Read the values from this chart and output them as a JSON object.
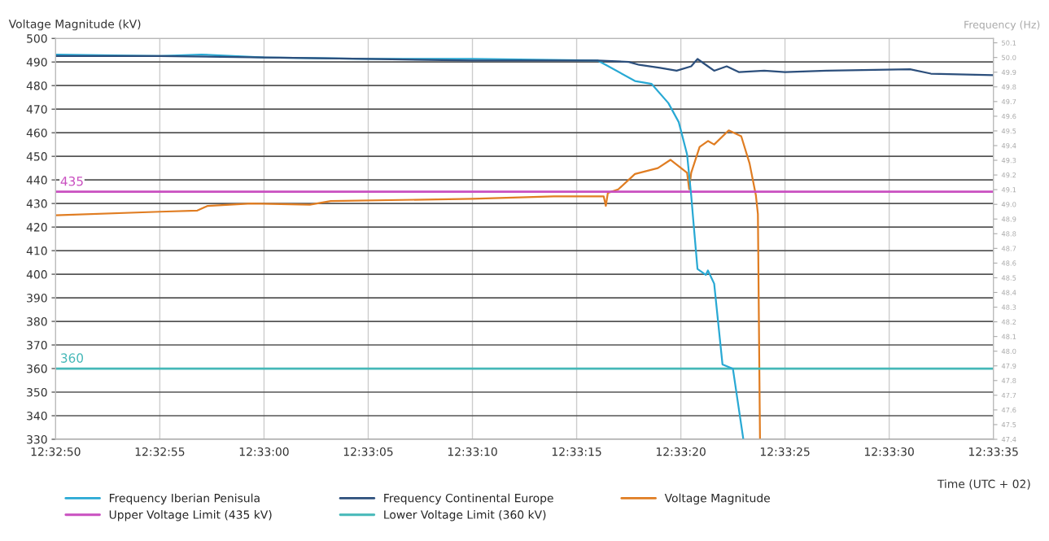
{
  "chart_data": {
    "type": "line",
    "ylabel": "Voltage Magnitude (kV)",
    "y2label": "Frequency (Hz)",
    "xlabel": "Time (UTC + 02)",
    "xlim": [
      12.547222,
      12.559722
    ],
    "xticks": [
      {
        "value": 12.547222,
        "label": "12:32:50"
      },
      {
        "value": 12.548611,
        "label": "12:32:55"
      },
      {
        "value": 12.55,
        "label": "12:33:00"
      },
      {
        "value": 12.551389,
        "label": "12:33:05"
      },
      {
        "value": 12.552778,
        "label": "12:33:10"
      },
      {
        "value": 12.554167,
        "label": "12:33:15"
      },
      {
        "value": 12.555556,
        "label": "12:33:20"
      },
      {
        "value": 12.556944,
        "label": "12:33:25"
      },
      {
        "value": 12.558333,
        "label": "12:33:30"
      },
      {
        "value": 12.559722,
        "label": "12:33:35"
      }
    ],
    "ylim": [
      330,
      500
    ],
    "yticks": [
      330,
      340,
      350,
      360,
      370,
      380,
      390,
      400,
      410,
      420,
      430,
      440,
      450,
      460,
      470,
      480,
      490,
      500
    ],
    "y2lim": [
      47.4,
      50.13
    ],
    "y2ticks": [
      47.4,
      47.5,
      47.6,
      47.7,
      47.8,
      47.9,
      {
        "value": 48,
        "label": "48.0"
      },
      48.1,
      48.2,
      48.3,
      48.4,
      48.5,
      48.6,
      48.7,
      48.8,
      48.9,
      {
        "value": 49,
        "label": "49.0"
      },
      49.1,
      49.2,
      49.3,
      49.4,
      49.5,
      49.6,
      49.7,
      49.8,
      49.9,
      {
        "value": 50,
        "label": "50.0"
      },
      50.1
    ],
    "grid": true,
    "legend": "bottom",
    "series": [
      {
        "name": "Frequency Iberian Penisula",
        "color": "#29a9d4",
        "axis": "y2",
        "x": [
          12.547222,
          12.548611,
          12.549167,
          12.55,
          12.551389,
          12.552778,
          12.554444,
          12.554556,
          12.554944,
          12.555167,
          12.555389,
          12.555528,
          12.555639,
          12.555694,
          12.555722,
          12.555778,
          12.555889,
          12.555917,
          12.556,
          12.556111,
          12.55625,
          12.556389
        ],
        "values": [
          50.02,
          50.01,
          50.02,
          50.0,
          49.99,
          49.99,
          49.98,
          49.95,
          49.84,
          49.82,
          49.69,
          49.56,
          49.34,
          49.06,
          48.89,
          48.56,
          48.52,
          48.55,
          48.46,
          47.91,
          47.88,
          47.4
        ]
      },
      {
        "name": "Frequency Continental Europe",
        "color": "#2c4f7c",
        "axis": "y2",
        "x": [
          12.547222,
          12.548611,
          12.55,
          12.551389,
          12.552778,
          12.554444,
          12.554861,
          12.555,
          12.555278,
          12.5555,
          12.555694,
          12.555778,
          12.555917,
          12.556,
          12.556167,
          12.556333,
          12.556667,
          12.556944,
          12.5575,
          12.558611,
          12.558889,
          12.559722
        ],
        "values": [
          50.01,
          50.01,
          50.0,
          49.99,
          49.98,
          49.98,
          49.97,
          49.95,
          49.93,
          49.91,
          49.94,
          49.99,
          49.94,
          49.91,
          49.94,
          49.9,
          49.91,
          49.9,
          49.91,
          49.92,
          49.89,
          49.88
        ]
      },
      {
        "name": "Voltage Magnitude",
        "color": "#e07d22",
        "x": [
          12.547222,
          12.548611,
          12.549111,
          12.54925,
          12.549833,
          12.550611,
          12.550889,
          12.552778,
          12.553861,
          12.554528,
          12.554556,
          12.554583,
          12.554722,
          12.554944,
          12.55525,
          12.555417,
          12.555639,
          12.555667,
          12.555694,
          12.555806,
          12.555917,
          12.556,
          12.556194,
          12.556361,
          12.556472,
          12.556556,
          12.556583,
          12.556611
        ],
        "values": [
          425,
          426.5,
          427,
          429,
          430,
          429.5,
          431,
          432,
          433,
          433,
          429,
          434.5,
          436,
          442.5,
          445,
          448.5,
          443,
          436,
          443,
          454,
          456.5,
          455,
          461,
          458.5,
          447,
          433.5,
          425.5,
          330
        ]
      }
    ],
    "ref_lines": [
      {
        "axis": "y",
        "value": 435,
        "label": "Upper Voltage Limit (435 kV)",
        "color": "#c94fc0"
      },
      {
        "axis": "y",
        "value": 360,
        "label": "Lower Voltage Limit (360 kV)",
        "color": "#45b8b8"
      }
    ],
    "annotations": [
      {
        "text": "435",
        "x": 12.547222,
        "y": 435
      },
      {
        "text": "360",
        "x": 12.547222,
        "y": 360
      }
    ]
  }
}
